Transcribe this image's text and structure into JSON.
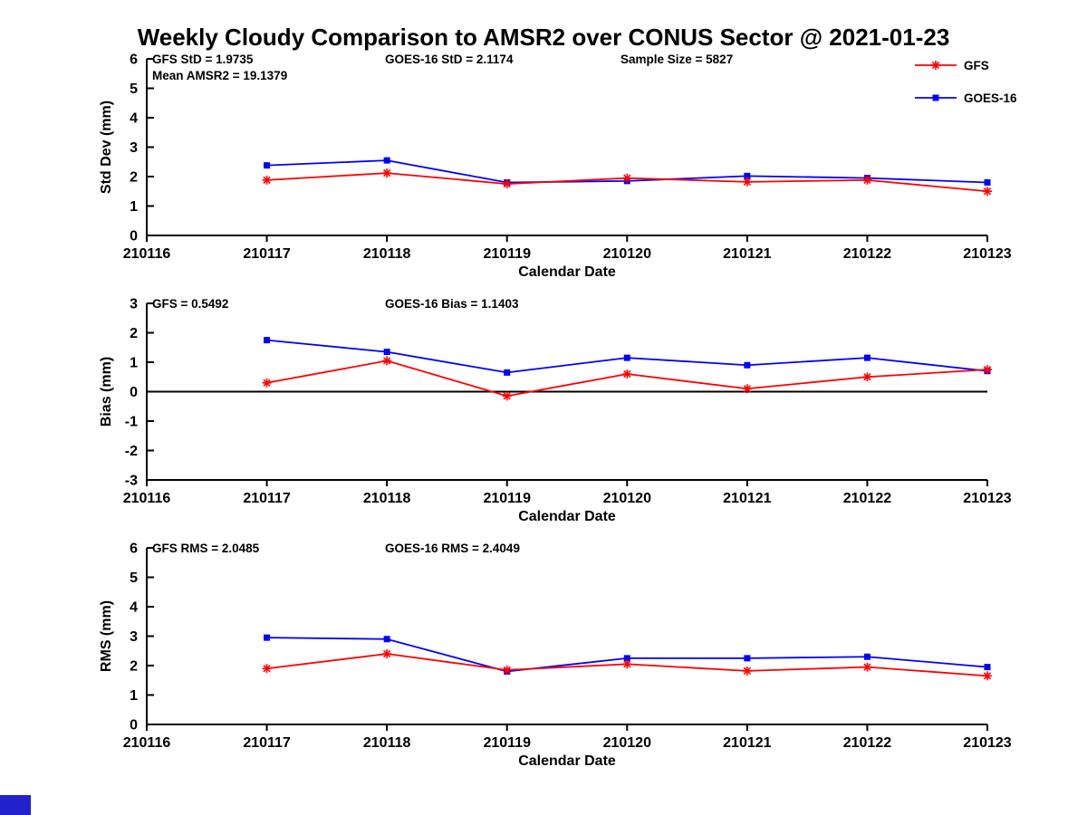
{
  "title": "Weekly Cloudy Comparison to AMSR2 over CONUS Sector @ 2021-01-23",
  "corner_mark_color": "#2222cc",
  "legend": {
    "position": "top-right",
    "items": [
      {
        "label": "GFS",
        "color": "#ff0000",
        "marker": "asterisk"
      },
      {
        "label": "GOES-16",
        "color": "#0000ff",
        "marker": "square"
      }
    ]
  },
  "chart_data": [
    {
      "type": "line",
      "name": "std-dev-panel",
      "title": "",
      "ylabel": "Std Dev (mm)",
      "xlabel": "Calendar Date",
      "ylim": [
        0,
        6
      ],
      "ytick_step": 1,
      "grid": false,
      "zero_line": false,
      "x_ticks": [
        "210116",
        "210117",
        "210118",
        "210119",
        "210120",
        "210121",
        "210122",
        "210123"
      ],
      "x": [
        "210117",
        "210118",
        "210119",
        "210120",
        "210121",
        "210122",
        "210123"
      ],
      "series": [
        {
          "name": "GFS",
          "color": "#ff0000",
          "marker": "asterisk",
          "values": [
            1.88,
            2.12,
            1.75,
            1.95,
            1.82,
            1.88,
            1.5
          ]
        },
        {
          "name": "GOES-16",
          "color": "#0000ff",
          "marker": "square",
          "values": [
            2.38,
            2.55,
            1.8,
            1.85,
            2.02,
            1.95,
            1.8
          ]
        }
      ],
      "annotations": [
        {
          "text": "GFS StD = 1.9735",
          "col": 0,
          "row": 0
        },
        {
          "text": "Mean AMSR2 = 19.1379",
          "col": 0,
          "row": 1
        },
        {
          "text": "GOES-16 StD = 2.1174",
          "col": 1,
          "row": 0
        },
        {
          "text": "Sample Size = 5827",
          "col": 2,
          "row": 0
        }
      ],
      "layout": {
        "top": 65,
        "bottom": 260
      }
    },
    {
      "type": "line",
      "name": "bias-panel",
      "title": "",
      "ylabel": "Bias (mm)",
      "xlabel": "Calendar Date",
      "ylim": [
        -3,
        3
      ],
      "ytick_step": 1,
      "grid": false,
      "zero_line": true,
      "x_ticks": [
        "210116",
        "210117",
        "210118",
        "210119",
        "210120",
        "210121",
        "210122",
        "210123"
      ],
      "x": [
        "210117",
        "210118",
        "210119",
        "210120",
        "210121",
        "210122",
        "210123"
      ],
      "series": [
        {
          "name": "GFS",
          "color": "#ff0000",
          "marker": "asterisk",
          "values": [
            0.3,
            1.05,
            -0.15,
            0.6,
            0.1,
            0.5,
            0.75
          ]
        },
        {
          "name": "GOES-16",
          "color": "#0000ff",
          "marker": "square",
          "values": [
            1.75,
            1.35,
            0.65,
            1.15,
            0.9,
            1.15,
            0.7
          ]
        }
      ],
      "annotations": [
        {
          "text": "GFS = 0.5492",
          "col": 0,
          "row": 0
        },
        {
          "text": "GOES-16 Bias = 1.1403",
          "col": 1,
          "row": 0
        }
      ],
      "layout": {
        "top": 335,
        "bottom": 530
      }
    },
    {
      "type": "line",
      "name": "rms-panel",
      "title": "",
      "ylabel": "RMS (mm)",
      "xlabel": "Calendar Date",
      "ylim": [
        0,
        6
      ],
      "ytick_step": 1,
      "grid": false,
      "zero_line": false,
      "x_ticks": [
        "210116",
        "210117",
        "210118",
        "210119",
        "210120",
        "210121",
        "210122",
        "210123"
      ],
      "x": [
        "210117",
        "210118",
        "210119",
        "210120",
        "210121",
        "210122",
        "210123"
      ],
      "series": [
        {
          "name": "GFS",
          "color": "#ff0000",
          "marker": "asterisk",
          "values": [
            1.9,
            2.4,
            1.85,
            2.05,
            1.82,
            1.95,
            1.65
          ]
        },
        {
          "name": "GOES-16",
          "color": "#0000ff",
          "marker": "square",
          "values": [
            2.95,
            2.9,
            1.8,
            2.25,
            2.25,
            2.3,
            1.95
          ]
        }
      ],
      "annotations": [
        {
          "text": "GFS RMS = 2.0485",
          "col": 0,
          "row": 0
        },
        {
          "text": "GOES-16 RMS = 2.4049",
          "col": 1,
          "row": 0
        }
      ],
      "layout": {
        "top": 605,
        "bottom": 800
      }
    }
  ]
}
